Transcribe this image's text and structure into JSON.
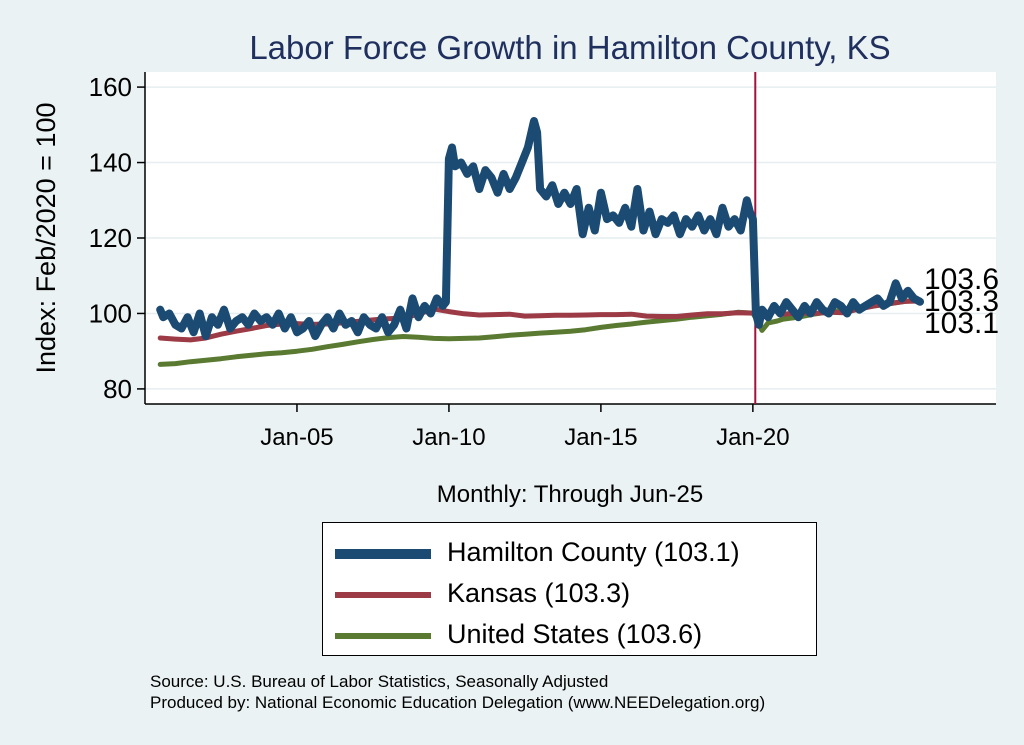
{
  "chart_data": {
    "type": "line",
    "title": "Labor Force Growth in Hamilton  County, KS",
    "xlabel": "Monthly: Through Jun-25",
    "ylabel": "Index: Feb/2020 = 100",
    "xlim": [
      2000.0,
      2028.0
    ],
    "ylim": [
      76,
      164
    ],
    "yticks": [
      80,
      100,
      120,
      140,
      160
    ],
    "xticks": [
      {
        "value": 2005.0,
        "label": "Jan-05"
      },
      {
        "value": 2010.0,
        "label": "Jan-10"
      },
      {
        "value": 2015.0,
        "label": "Jan-15"
      },
      {
        "value": 2020.0,
        "label": "Jan-20"
      }
    ],
    "reference_line": {
      "x": 2020.08,
      "color": "#a3123a"
    },
    "end_labels": [
      "103.6",
      "103.3",
      "103.1"
    ],
    "series": [
      {
        "name": "Hamilton  County (103.1)",
        "color": "#1b4a72",
        "x": [
          2000.5,
          2000.6,
          2000.8,
          2001.0,
          2001.2,
          2001.4,
          2001.6,
          2001.8,
          2002.0,
          2002.2,
          2002.4,
          2002.6,
          2002.8,
          2003.0,
          2003.2,
          2003.4,
          2003.6,
          2003.8,
          2004.0,
          2004.2,
          2004.4,
          2004.6,
          2004.8,
          2005.0,
          2005.2,
          2005.4,
          2005.6,
          2005.8,
          2006.0,
          2006.2,
          2006.4,
          2006.6,
          2006.8,
          2007.0,
          2007.2,
          2007.4,
          2007.6,
          2007.8,
          2008.0,
          2008.2,
          2008.4,
          2008.6,
          2008.8,
          2009.0,
          2009.2,
          2009.4,
          2009.6,
          2009.8,
          2009.9,
          2010.0,
          2010.1,
          2010.2,
          2010.4,
          2010.6,
          2010.8,
          2011.0,
          2011.2,
          2011.4,
          2011.6,
          2011.8,
          2012.0,
          2012.2,
          2012.4,
          2012.6,
          2012.8,
          2012.9,
          2013.0,
          2013.2,
          2013.4,
          2013.6,
          2013.8,
          2014.0,
          2014.2,
          2014.4,
          2014.6,
          2014.8,
          2015.0,
          2015.2,
          2015.4,
          2015.6,
          2015.8,
          2016.0,
          2016.2,
          2016.4,
          2016.6,
          2016.8,
          2017.0,
          2017.2,
          2017.4,
          2017.6,
          2017.8,
          2018.0,
          2018.2,
          2018.4,
          2018.6,
          2018.8,
          2019.0,
          2019.2,
          2019.4,
          2019.6,
          2019.8,
          2019.9,
          2020.0,
          2020.1,
          2020.2,
          2020.3,
          2020.5,
          2020.7,
          2020.9,
          2021.1,
          2021.3,
          2021.5,
          2021.7,
          2021.9,
          2022.1,
          2022.3,
          2022.5,
          2022.7,
          2022.9,
          2023.1,
          2023.3,
          2023.5,
          2023.7,
          2023.9,
          2024.1,
          2024.3,
          2024.5,
          2024.7,
          2024.9,
          2025.1,
          2025.3,
          2025.5
        ],
        "values": [
          101,
          99,
          100,
          97,
          96,
          99,
          95,
          100,
          94,
          99,
          97,
          101,
          96,
          98,
          99,
          97,
          100,
          98,
          99,
          97,
          100,
          96,
          99,
          95,
          96,
          98,
          94,
          97,
          99,
          96,
          100,
          97,
          98,
          95,
          99,
          97,
          96,
          99,
          95,
          97,
          101,
          96,
          104,
          99,
          102,
          100,
          104,
          102,
          103,
          141,
          144,
          139,
          140,
          137,
          139,
          133,
          138,
          136,
          132,
          137,
          133,
          136,
          140,
          144,
          151,
          148,
          133,
          131,
          134,
          129,
          132,
          129,
          133,
          121,
          128,
          122,
          132,
          125,
          126,
          124,
          128,
          123,
          133,
          122,
          127,
          121,
          125,
          124,
          126,
          121,
          125,
          123,
          126,
          122,
          125,
          121,
          128,
          123,
          125,
          122,
          130,
          127,
          125,
          100,
          97,
          101,
          99,
          102,
          100,
          103,
          101,
          99,
          102,
          100,
          103,
          101,
          100,
          103,
          102,
          100,
          103,
          101,
          102,
          103,
          104,
          102,
          103,
          108,
          104,
          106,
          104,
          103.1
        ]
      },
      {
        "name": "Kansas (103.3)",
        "color": "#9c3a46",
        "x": [
          2000.5,
          2001.0,
          2001.5,
          2002.0,
          2002.5,
          2003.0,
          2003.5,
          2004.0,
          2004.5,
          2005.0,
          2005.5,
          2006.0,
          2006.5,
          2007.0,
          2007.5,
          2008.0,
          2008.5,
          2009.0,
          2009.5,
          2010.0,
          2010.5,
          2011.0,
          2011.5,
          2012.0,
          2012.5,
          2013.0,
          2013.5,
          2014.0,
          2014.5,
          2015.0,
          2015.5,
          2016.0,
          2016.5,
          2017.0,
          2017.5,
          2018.0,
          2018.5,
          2019.0,
          2019.5,
          2020.0,
          2020.2,
          2020.4,
          2020.7,
          2021.0,
          2021.5,
          2022.0,
          2022.5,
          2023.0,
          2023.5,
          2024.0,
          2024.5,
          2025.0,
          2025.5
        ],
        "values": [
          93.5,
          93.2,
          93.0,
          93.5,
          94.5,
          95.3,
          96.0,
          96.8,
          97.2,
          97.3,
          97.1,
          97.2,
          97.5,
          97.9,
          98.3,
          98.6,
          98.8,
          99.8,
          101.2,
          100.5,
          99.9,
          99.6,
          99.7,
          99.8,
          99.3,
          99.4,
          99.5,
          99.5,
          99.6,
          99.7,
          99.7,
          99.8,
          99.3,
          99.2,
          99.2,
          99.6,
          99.9,
          99.9,
          100.2,
          100.1,
          99.0,
          100.0,
          100.8,
          99.8,
          100.2,
          100.0,
          100.3,
          100.2,
          101.2,
          102.0,
          102.6,
          103.2,
          103.3
        ]
      },
      {
        "name": "United States (103.6)",
        "color": "#5a7a32",
        "x": [
          2000.5,
          2001.0,
          2001.5,
          2002.0,
          2002.5,
          2003.0,
          2003.5,
          2004.0,
          2004.5,
          2005.0,
          2005.5,
          2006.0,
          2006.5,
          2007.0,
          2007.5,
          2008.0,
          2008.5,
          2009.0,
          2009.5,
          2010.0,
          2010.5,
          2011.0,
          2011.5,
          2012.0,
          2012.5,
          2013.0,
          2013.5,
          2014.0,
          2014.5,
          2015.0,
          2015.5,
          2016.0,
          2016.5,
          2017.0,
          2017.5,
          2018.0,
          2018.5,
          2019.0,
          2019.5,
          2020.0,
          2020.15,
          2020.3,
          2020.5,
          2020.8,
          2021.0,
          2021.5,
          2022.0,
          2022.5,
          2023.0,
          2023.5,
          2024.0,
          2024.5,
          2025.0,
          2025.5
        ],
        "values": [
          86.5,
          86.7,
          87.2,
          87.6,
          88.0,
          88.5,
          88.9,
          89.3,
          89.6,
          90.0,
          90.5,
          91.2,
          91.8,
          92.5,
          93.1,
          93.6,
          93.9,
          93.7,
          93.4,
          93.3,
          93.4,
          93.5,
          93.8,
          94.2,
          94.5,
          94.8,
          95.0,
          95.3,
          95.7,
          96.3,
          96.8,
          97.2,
          97.7,
          98.1,
          98.5,
          99.0,
          99.4,
          99.8,
          100.3,
          100.1,
          98.0,
          95.5,
          97.5,
          98.0,
          98.5,
          99.0,
          99.8,
          100.4,
          101.0,
          101.5,
          102.0,
          102.6,
          103.2,
          103.6
        ]
      }
    ]
  },
  "footer": {
    "source": "Source: U.S. Bureau of Labor Statistics, Seasonally Adjusted",
    "produced_by": "Produced by: National Economic Education Delegation (www.NEEDelegation.org)"
  }
}
